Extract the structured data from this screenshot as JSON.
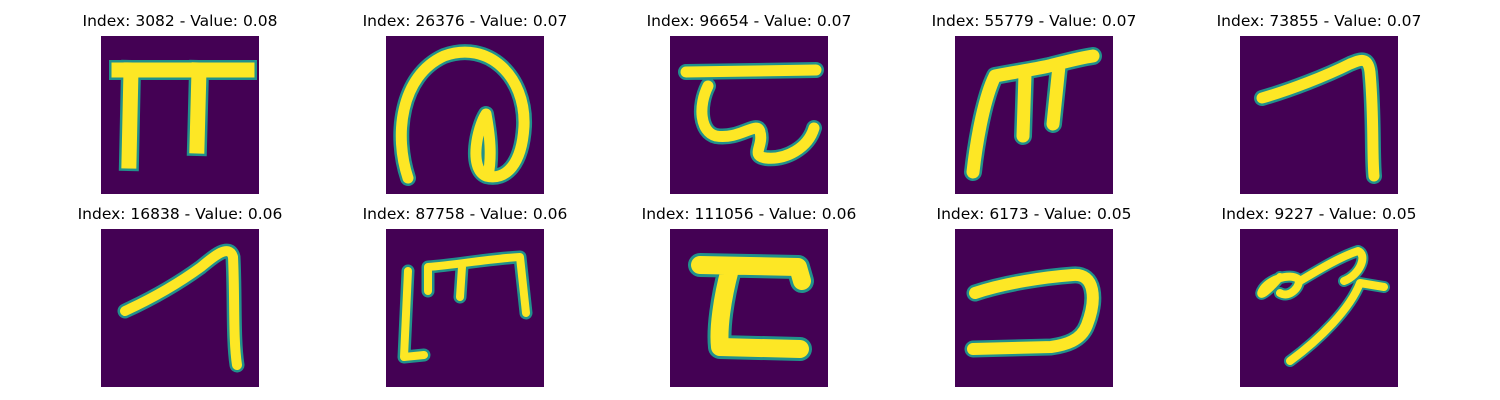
{
  "colormap": {
    "background": "#440154",
    "glyph": "#fde725",
    "edge": "#21918c"
  },
  "panels": [
    {
      "title": "Index: 3082 - Value: 0.08",
      "glyph": "glyph-pi-shape"
    },
    {
      "title": "Index: 26376 - Value: 0.07",
      "glyph": "glyph-loop-shape"
    },
    {
      "title": "Index: 96654 - Value: 0.07",
      "glyph": "glyph-hook-shape"
    },
    {
      "title": "Index: 55779 - Value: 0.07",
      "glyph": "glyph-m-shape"
    },
    {
      "title": "Index: 73855 - Value: 0.07",
      "glyph": "glyph-seven-shape"
    },
    {
      "title": "Index: 16838 - Value: 0.06",
      "glyph": "glyph-seven-slanted-shape"
    },
    {
      "title": "Index: 87758 - Value: 0.06",
      "glyph": "glyph-bracket-m-shape"
    },
    {
      "title": "Index: 111056 - Value: 0.06",
      "glyph": "glyph-z-shape"
    },
    {
      "title": "Index: 6173 - Value: 0.05",
      "glyph": "glyph-reverse-c-shape"
    },
    {
      "title": "Index: 9227 - Value: 0.05",
      "glyph": "glyph-scribble-shape"
    }
  ]
}
